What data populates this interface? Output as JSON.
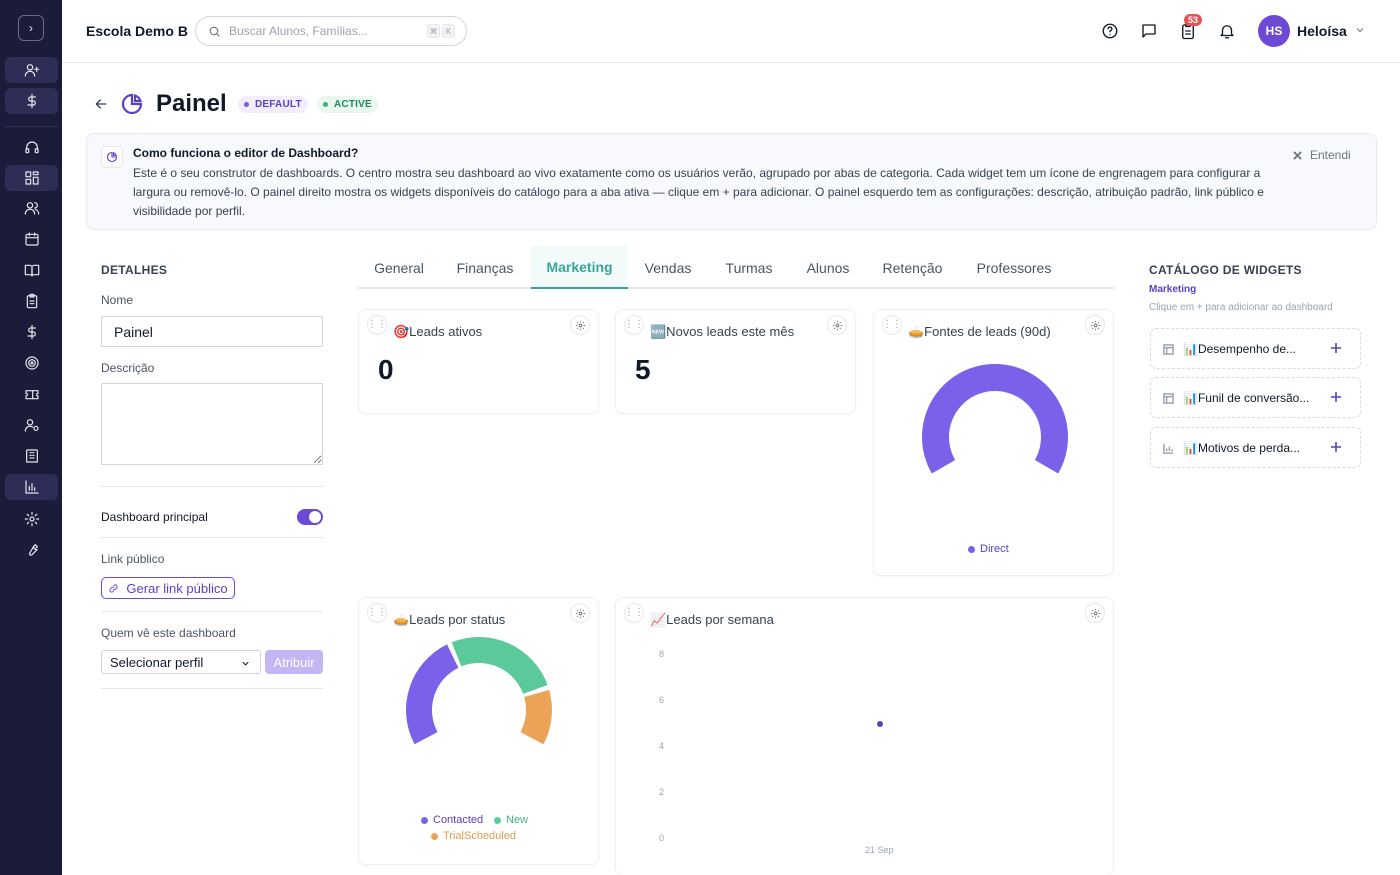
{
  "topbar": {
    "school_name": "Escola Demo B",
    "search_placeholder": "Buscar Alunos, Famílias...",
    "kbd_1": "⌘",
    "kbd_2": "K",
    "notification_count": "53",
    "avatar_initials": "HS",
    "user_name": "Heloísa"
  },
  "header": {
    "title": "Painel",
    "badge_default": "DEFAULT",
    "badge_active": "ACTIVE"
  },
  "info": {
    "title": "Como funciona o editor de Dashboard?",
    "text": "Este é o seu construtor de dashboards. O centro mostra seu dashboard ao vivo exatamente como os usuários verão, agrupado por abas de categoria. Cada widget tem um ícone de engrenagem para configurar a largura ou removê-lo. O painel direito mostra os widgets disponíveis do catálogo para a aba ativa — clique em + para adicionar. O painel esquerdo tem as configurações: descrição, atribuição padrão, link público e visibilidade por perfil.",
    "dismiss_label": "Entendi"
  },
  "details": {
    "section_title": "DETALHES",
    "name_label": "Nome",
    "name_value": "Painel",
    "description_label": "Descrição",
    "description_value": "",
    "main_dashboard_label": "Dashboard principal",
    "main_dashboard_on": true,
    "public_link_label": "Link público",
    "public_link_button": "Gerar link público",
    "visibility_label": "Quem vê este dashboard",
    "profile_select": "Selecionar perfil",
    "assign_button": "Atribuir"
  },
  "tabs": [
    {
      "label": "General"
    },
    {
      "label": "Finanças"
    },
    {
      "label": "Marketing"
    },
    {
      "label": "Vendas"
    },
    {
      "label": "Turmas"
    },
    {
      "label": "Alunos"
    },
    {
      "label": "Retenção"
    },
    {
      "label": "Professores"
    }
  ],
  "active_tab": "Marketing",
  "colors": {
    "accent": "#6d4ad6",
    "tab_active": "#3aa39a",
    "purple": "#7b61ea",
    "green": "#5cc99b",
    "orange": "#eba457"
  },
  "widgets": {
    "leads_ativos": {
      "title": "🎯Leads ativos",
      "value": "0"
    },
    "novos_leads": {
      "title": "🆕Novos leads este mês",
      "value": "5"
    },
    "fontes_leads": {
      "title": "🥧Fontes de leads (90d)",
      "legend": "Direct"
    },
    "leads_status": {
      "title": "🥧Leads por status",
      "legend_1": "Contacted",
      "legend_2": "New",
      "legend_3": "TrialScheduled"
    },
    "leads_semana": {
      "title": "📈Leads por semana"
    }
  },
  "chart_data": [
    {
      "type": "pie",
      "title": "🥧Fontes de leads (90d)",
      "categories": [
        "Direct"
      ],
      "values": [
        1
      ],
      "legend": "bottom"
    },
    {
      "type": "pie",
      "title": "🥧Leads por status",
      "categories": [
        "Contacted",
        "New",
        "TrialScheduled"
      ],
      "values": [
        2,
        2,
        1
      ],
      "legend": "bottom"
    },
    {
      "type": "scatter",
      "title": "📈Leads por semana",
      "x": [
        "21 Sep"
      ],
      "y": [
        5
      ],
      "yticks": [
        "8",
        "6",
        "4",
        "2",
        "0"
      ],
      "ylim": [
        0,
        8
      ],
      "grid": false
    }
  ],
  "catalog": {
    "title": "CATÁLOGO DE WIDGETS",
    "category": "Marketing",
    "hint": "Clique em + para adicionar ao dashboard",
    "items": [
      {
        "label": "📊Desempenho de..."
      },
      {
        "label": "📊Funil de conversão..."
      },
      {
        "label": "📊Motivos de perda..."
      }
    ]
  }
}
